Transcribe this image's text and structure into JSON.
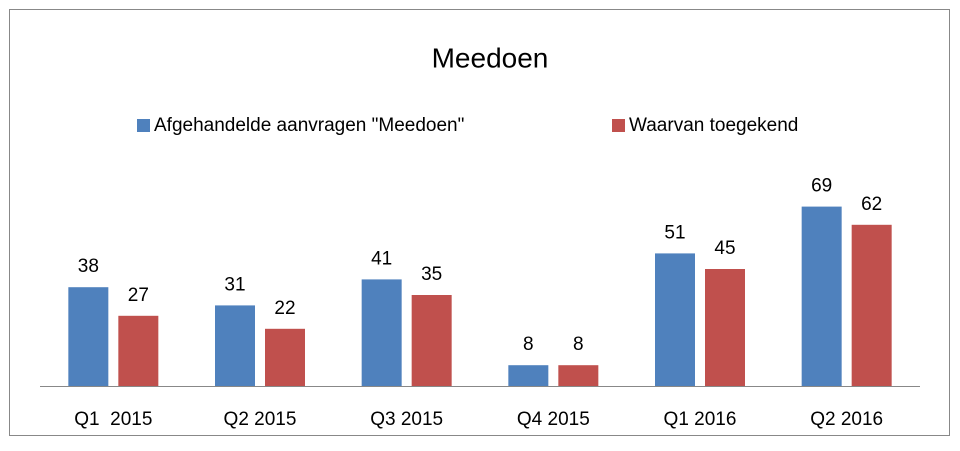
{
  "chart_data": {
    "type": "bar",
    "title": "Meedoen",
    "categories": [
      "Q1  2015",
      "Q2 2015",
      "Q3 2015",
      "Q4 2015",
      "Q1 2016",
      "Q2 2016"
    ],
    "series": [
      {
        "name": "Afgehandelde aanvragen \"Meedoen\"",
        "color": "#4f81bd",
        "values": [
          38,
          31,
          41,
          8,
          51,
          69
        ]
      },
      {
        "name": "Waarvan toegekend",
        "color": "#c0504d",
        "values": [
          27,
          22,
          35,
          8,
          45,
          62
        ]
      }
    ],
    "legend": "top"
  }
}
